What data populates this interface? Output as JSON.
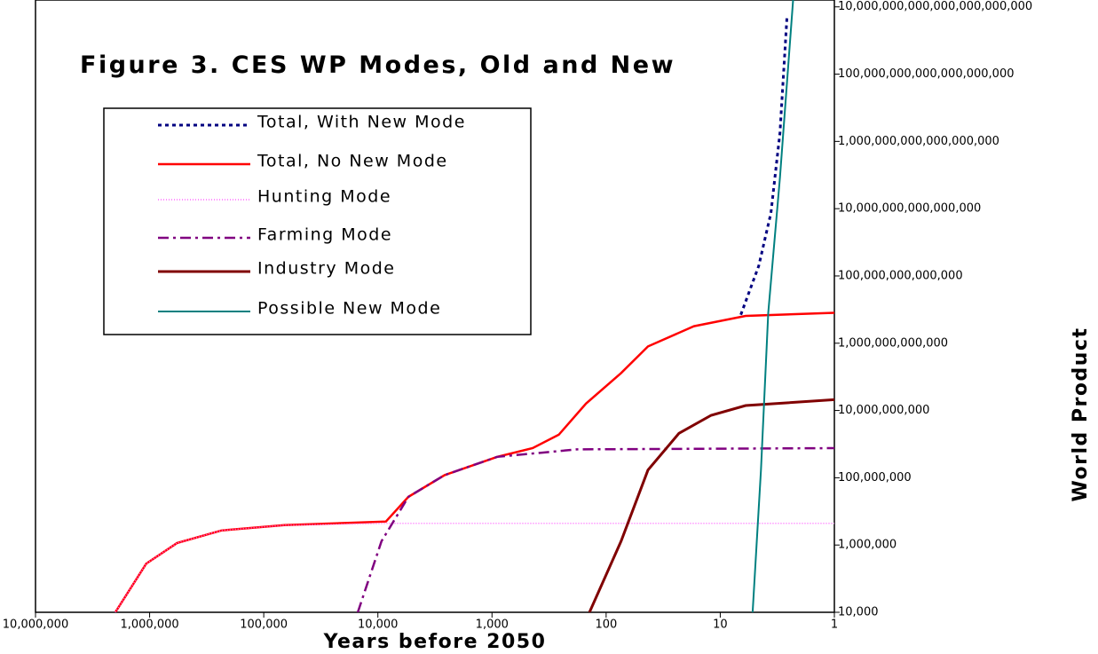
{
  "chart_data": {
    "type": "line",
    "title": "Figure 3.  CES WP Modes, Old and New",
    "x_label": "Years before 2050",
    "y_label": "World Product",
    "xscale": "log",
    "yscale": "log",
    "xlim": [
      10000000,
      1
    ],
    "ylim": [
      10000,
      1.6e+22
    ],
    "xticks": [
      {
        "value": 10000000,
        "label": "10,000,000"
      },
      {
        "value": 1000000,
        "label": "1,000,000"
      },
      {
        "value": 100000,
        "label": "100,000"
      },
      {
        "value": 10000,
        "label": "10,000"
      },
      {
        "value": 1000,
        "label": "1,000"
      },
      {
        "value": 100,
        "label": "100"
      },
      {
        "value": 10,
        "label": "10"
      },
      1
    ],
    "yticks": [
      {
        "value": 10000,
        "label": "10,000"
      },
      {
        "value": 1000000,
        "label": "1,000,000"
      },
      {
        "value": 100000000,
        "label": "100,000,000"
      },
      {
        "value": 10000000000,
        "label": "10,000,000,000"
      },
      {
        "value": 1000000000000,
        "label": "1,000,000,000,000"
      },
      {
        "value": 100000000000000,
        "label": "100,000,000,000,000"
      },
      {
        "value": 10000000000000000,
        "label": "10,000,000,000,000,000"
      },
      {
        "value": 1000000000000000000,
        "label": "1,000,000,000,000,000,000"
      },
      {
        "value": 100000000000000000000,
        "label": "100,000,000,000,000,000,000"
      },
      {
        "value": 1e+22,
        "label": "10,000,000,000,000,000,000,000"
      }
    ],
    "series": [
      {
        "name": "Total, With New Mode",
        "color": "#000080",
        "dash": "4,4",
        "width": 3,
        "x": [
          6.6,
          4.6,
          3.6,
          3.0,
          2.6
        ],
        "values": [
          7000000000000.0,
          200000000000000.0,
          7400000000000000.0,
          1.8e+18,
          5e+21
        ]
      },
      {
        "name": "Total, No New Mode",
        "color": "#ff0000",
        "dash": "none",
        "width": 2.5,
        "x": [
          2000000,
          1070000,
          575000,
          235000,
          66000,
          8500,
          5400,
          2600,
          900,
          440,
          260,
          150,
          74,
          43,
          17,
          6,
          1
        ],
        "values": [
          10000,
          280000,
          1150000,
          2700000,
          3900000,
          5000000,
          27000000,
          120000000,
          420000000,
          760000000,
          1900000000,
          16000000000,
          130000000000,
          800000000000,
          3200000000000,
          6500000000000,
          8000000000000
        ]
      },
      {
        "name": "Hunting Mode",
        "color": "#ff66ff",
        "dash": "1,2",
        "width": 1.5,
        "x": [
          2000000,
          1070000,
          575000,
          235000,
          66000,
          8500,
          1
        ],
        "values": [
          10000,
          280000,
          1150000,
          2700000,
          3900000,
          4400000,
          4400000
        ]
      },
      {
        "name": "Farming Mode",
        "color": "#800080",
        "dash": "12,5,3,5",
        "width": 2.5,
        "x": [
          15000,
          9300,
          5400,
          2600,
          900,
          180,
          1
        ],
        "values": [
          10000,
          1300000,
          27000000,
          120000000,
          420000000,
          700000000,
          760000000
        ]
      },
      {
        "name": "Industry Mode",
        "color": "#800000",
        "dash": "none",
        "width": 3,
        "x": [
          140,
          74,
          43,
          23,
          12,
          6,
          1
        ],
        "values": [
          10000,
          1300000,
          170000000,
          2100000000,
          7200000000,
          14000000000,
          21000000000
        ]
      },
      {
        "name": "Possible New Mode",
        "color": "#008080",
        "dash": "none",
        "width": 2,
        "x": [
          5.2,
          4.4,
          3.8,
          3.0,
          2.3
        ],
        "values": [
          10000,
          170000000,
          8000000000000,
          8.5e+16,
          1.6e+22
        ]
      }
    ]
  }
}
